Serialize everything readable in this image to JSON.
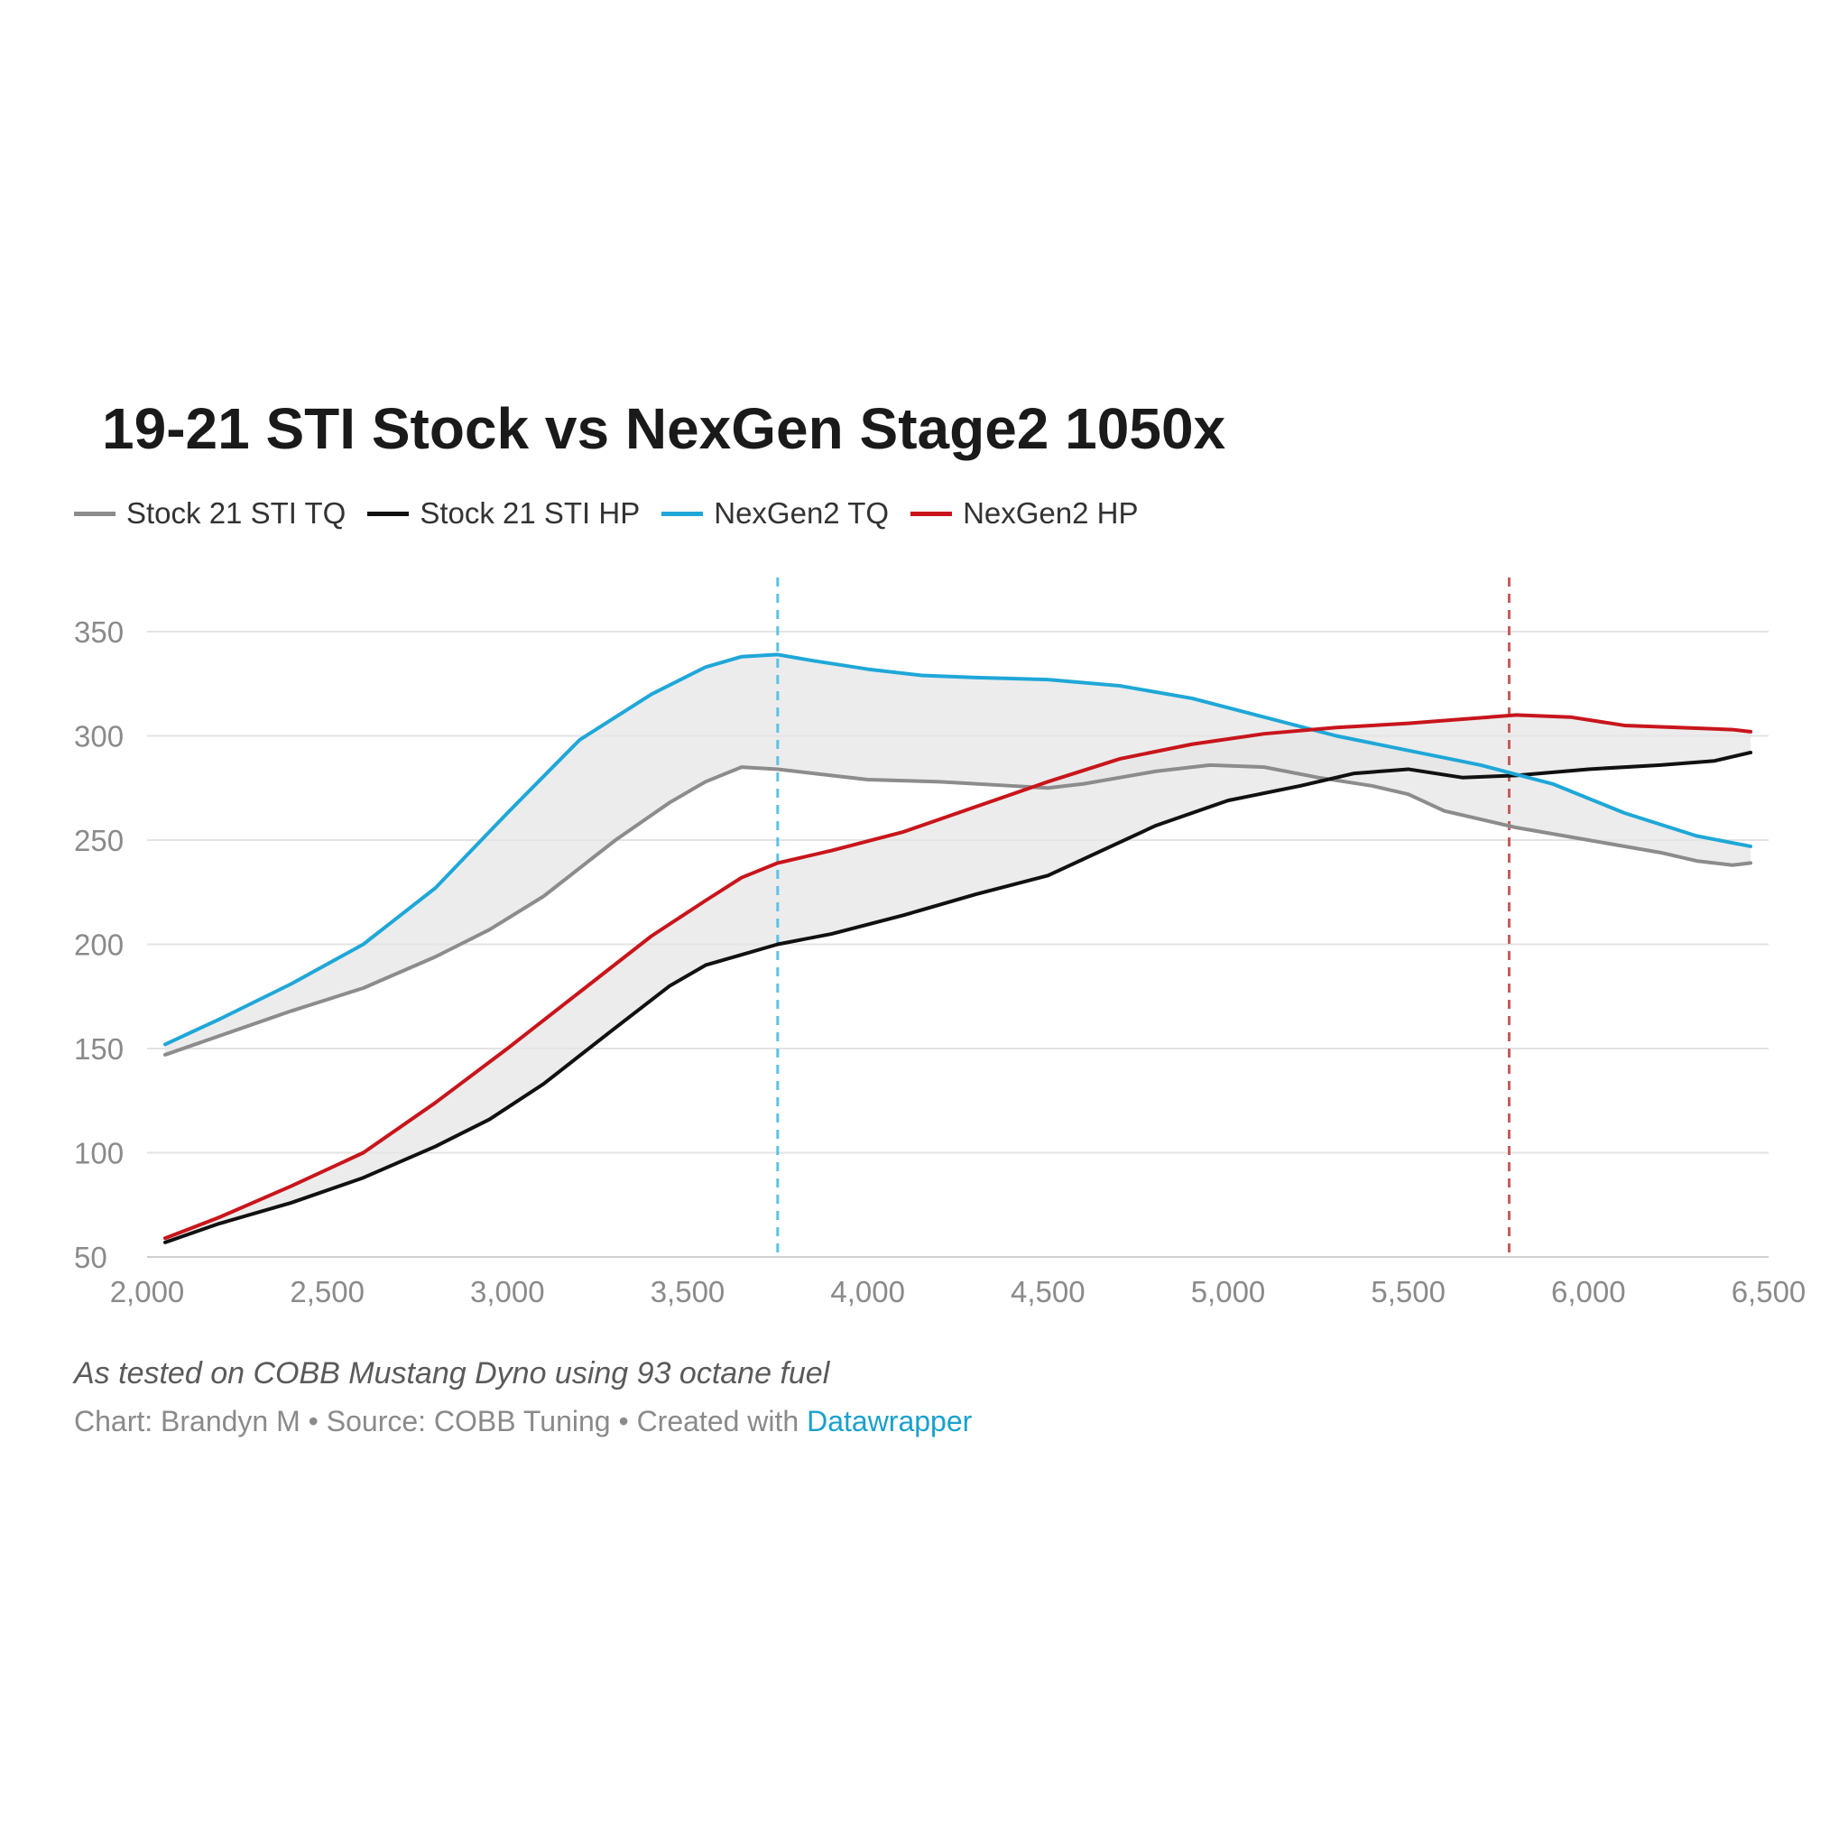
{
  "chart_data": {
    "type": "line",
    "title": "19-21 STI Stock vs NexGen Stage2 1050x",
    "xlabel": "",
    "ylabel": "",
    "xlim": [
      2000,
      6500
    ],
    "ylim": [
      50,
      350
    ],
    "x_ticks": [
      2000,
      2500,
      3000,
      3500,
      4000,
      4500,
      5000,
      5500,
      6000,
      6500
    ],
    "x_tick_labels": [
      "2,000",
      "2,500",
      "3,000",
      "3,500",
      "4,000",
      "4,500",
      "5,000",
      "5,500",
      "6,000",
      "6,500"
    ],
    "y_ticks": [
      50,
      100,
      150,
      200,
      250,
      300,
      350
    ],
    "y_tick_labels": [
      "50",
      "100",
      "150",
      "200",
      "250",
      "300",
      "350"
    ],
    "grid": true,
    "legend_position": "top-left",
    "shaded_ranges": [
      {
        "between": [
          "NexGen2 TQ",
          "Stock 21 STI TQ"
        ],
        "color": "#e6e6e6"
      },
      {
        "between": [
          "NexGen2 HP",
          "Stock 21 STI HP"
        ],
        "color": "#e6e6e6"
      }
    ],
    "reference_lines": [
      {
        "x": 3750,
        "color": "#5bc3e6",
        "style": "dashed"
      },
      {
        "x": 5780,
        "color": "#c95a5a",
        "style": "dashed"
      }
    ],
    "series": [
      {
        "name": "Stock 21 STI TQ",
        "color": "#8c8c8c",
        "x": [
          2050,
          2200,
          2400,
          2600,
          2800,
          2950,
          3100,
          3300,
          3450,
          3550,
          3650,
          3750,
          3850,
          4000,
          4200,
          4400,
          4500,
          4600,
          4800,
          4950,
          5100,
          5250,
          5400,
          5500,
          5600,
          5800,
          6000,
          6200,
          6300,
          6400,
          6450
        ],
        "values": [
          147,
          156,
          168,
          179,
          194,
          207,
          223,
          250,
          268,
          278,
          285,
          284,
          282,
          279,
          278,
          276,
          275,
          277,
          283,
          286,
          285,
          280,
          276,
          272,
          264,
          256,
          250,
          244,
          240,
          238,
          239
        ]
      },
      {
        "name": "Stock 21 STI HP",
        "color": "#111111",
        "x": [
          2050,
          2200,
          2400,
          2600,
          2800,
          2950,
          3100,
          3300,
          3450,
          3550,
          3650,
          3750,
          3900,
          4100,
          4300,
          4500,
          4650,
          4800,
          5000,
          5200,
          5350,
          5500,
          5650,
          5800,
          6000,
          6200,
          6350,
          6450
        ],
        "values": [
          57,
          66,
          76,
          88,
          103,
          116,
          133,
          160,
          180,
          190,
          195,
          200,
          205,
          214,
          224,
          233,
          245,
          257,
          269,
          276,
          282,
          284,
          280,
          281,
          284,
          286,
          288,
          292
        ]
      },
      {
        "name": "NexGen2 TQ",
        "color": "#1fa7d8",
        "x": [
          2050,
          2200,
          2400,
          2600,
          2800,
          3000,
          3200,
          3400,
          3550,
          3650,
          3750,
          3850,
          4000,
          4150,
          4300,
          4500,
          4700,
          4900,
          5100,
          5300,
          5500,
          5700,
          5900,
          6100,
          6300,
          6450
        ],
        "values": [
          152,
          164,
          181,
          200,
          227,
          263,
          298,
          320,
          333,
          338,
          339,
          336,
          332,
          329,
          328,
          327,
          324,
          318,
          309,
          300,
          293,
          286,
          277,
          263,
          252,
          247
        ]
      },
      {
        "name": "NexGen2 HP",
        "color": "#c8151b",
        "x": [
          2050,
          2200,
          2400,
          2600,
          2800,
          3000,
          3200,
          3400,
          3550,
          3650,
          3750,
          3900,
          4100,
          4300,
          4500,
          4700,
          4900,
          5100,
          5300,
          5500,
          5650,
          5800,
          5950,
          6100,
          6250,
          6400,
          6450
        ],
        "values": [
          59,
          69,
          84,
          100,
          124,
          150,
          177,
          204,
          221,
          232,
          239,
          245,
          254,
          266,
          278,
          289,
          296,
          301,
          304,
          306,
          308,
          310,
          309,
          305,
          304,
          303,
          302
        ]
      }
    ]
  },
  "footer": {
    "note": "As tested on COBB Mustang Dyno using 93 octane fuel",
    "credit_prefix": "Chart: Brandyn M • Source: COBB Tuning • Created with ",
    "credit_link": "Datawrapper"
  }
}
